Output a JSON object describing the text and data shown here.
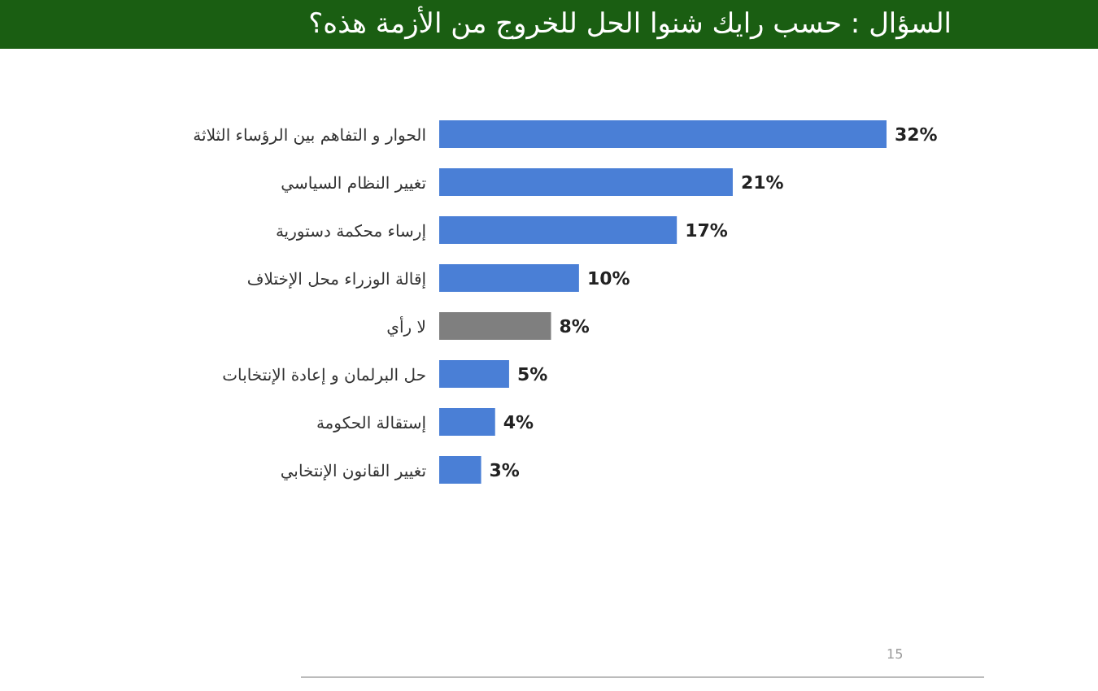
{
  "chart_data": {
    "type": "bar",
    "orientation": "horizontal",
    "title": "السؤال : حسب رايك شنوا الحل للخروج من الأزمة هذه؟",
    "categories": [
      "الحوار و التفاهم بين الرؤساء الثلاثة",
      "تغيير النظام السياسي",
      "إرساء محكمة دستورية",
      "إقالة الوزراء محل الإختلاف",
      "لا رأي",
      "حل البرلمان و إعادة الإنتخابات",
      "إستقالة الحكومة",
      "تغيير القانون الإنتخابي"
    ],
    "values": [
      32,
      21,
      17,
      10,
      8,
      5,
      4,
      3
    ],
    "colors": [
      "#4a7fd6",
      "#4a7fd6",
      "#4a7fd6",
      "#4a7fd6",
      "#7f7f7f",
      "#4a7fd6",
      "#4a7fd6",
      "#4a7fd6"
    ],
    "value_labels": [
      "32%",
      "21%",
      "17%",
      "10%",
      "8%",
      "5%",
      "4%",
      "3%"
    ],
    "annotations": [
      "15"
    ]
  }
}
